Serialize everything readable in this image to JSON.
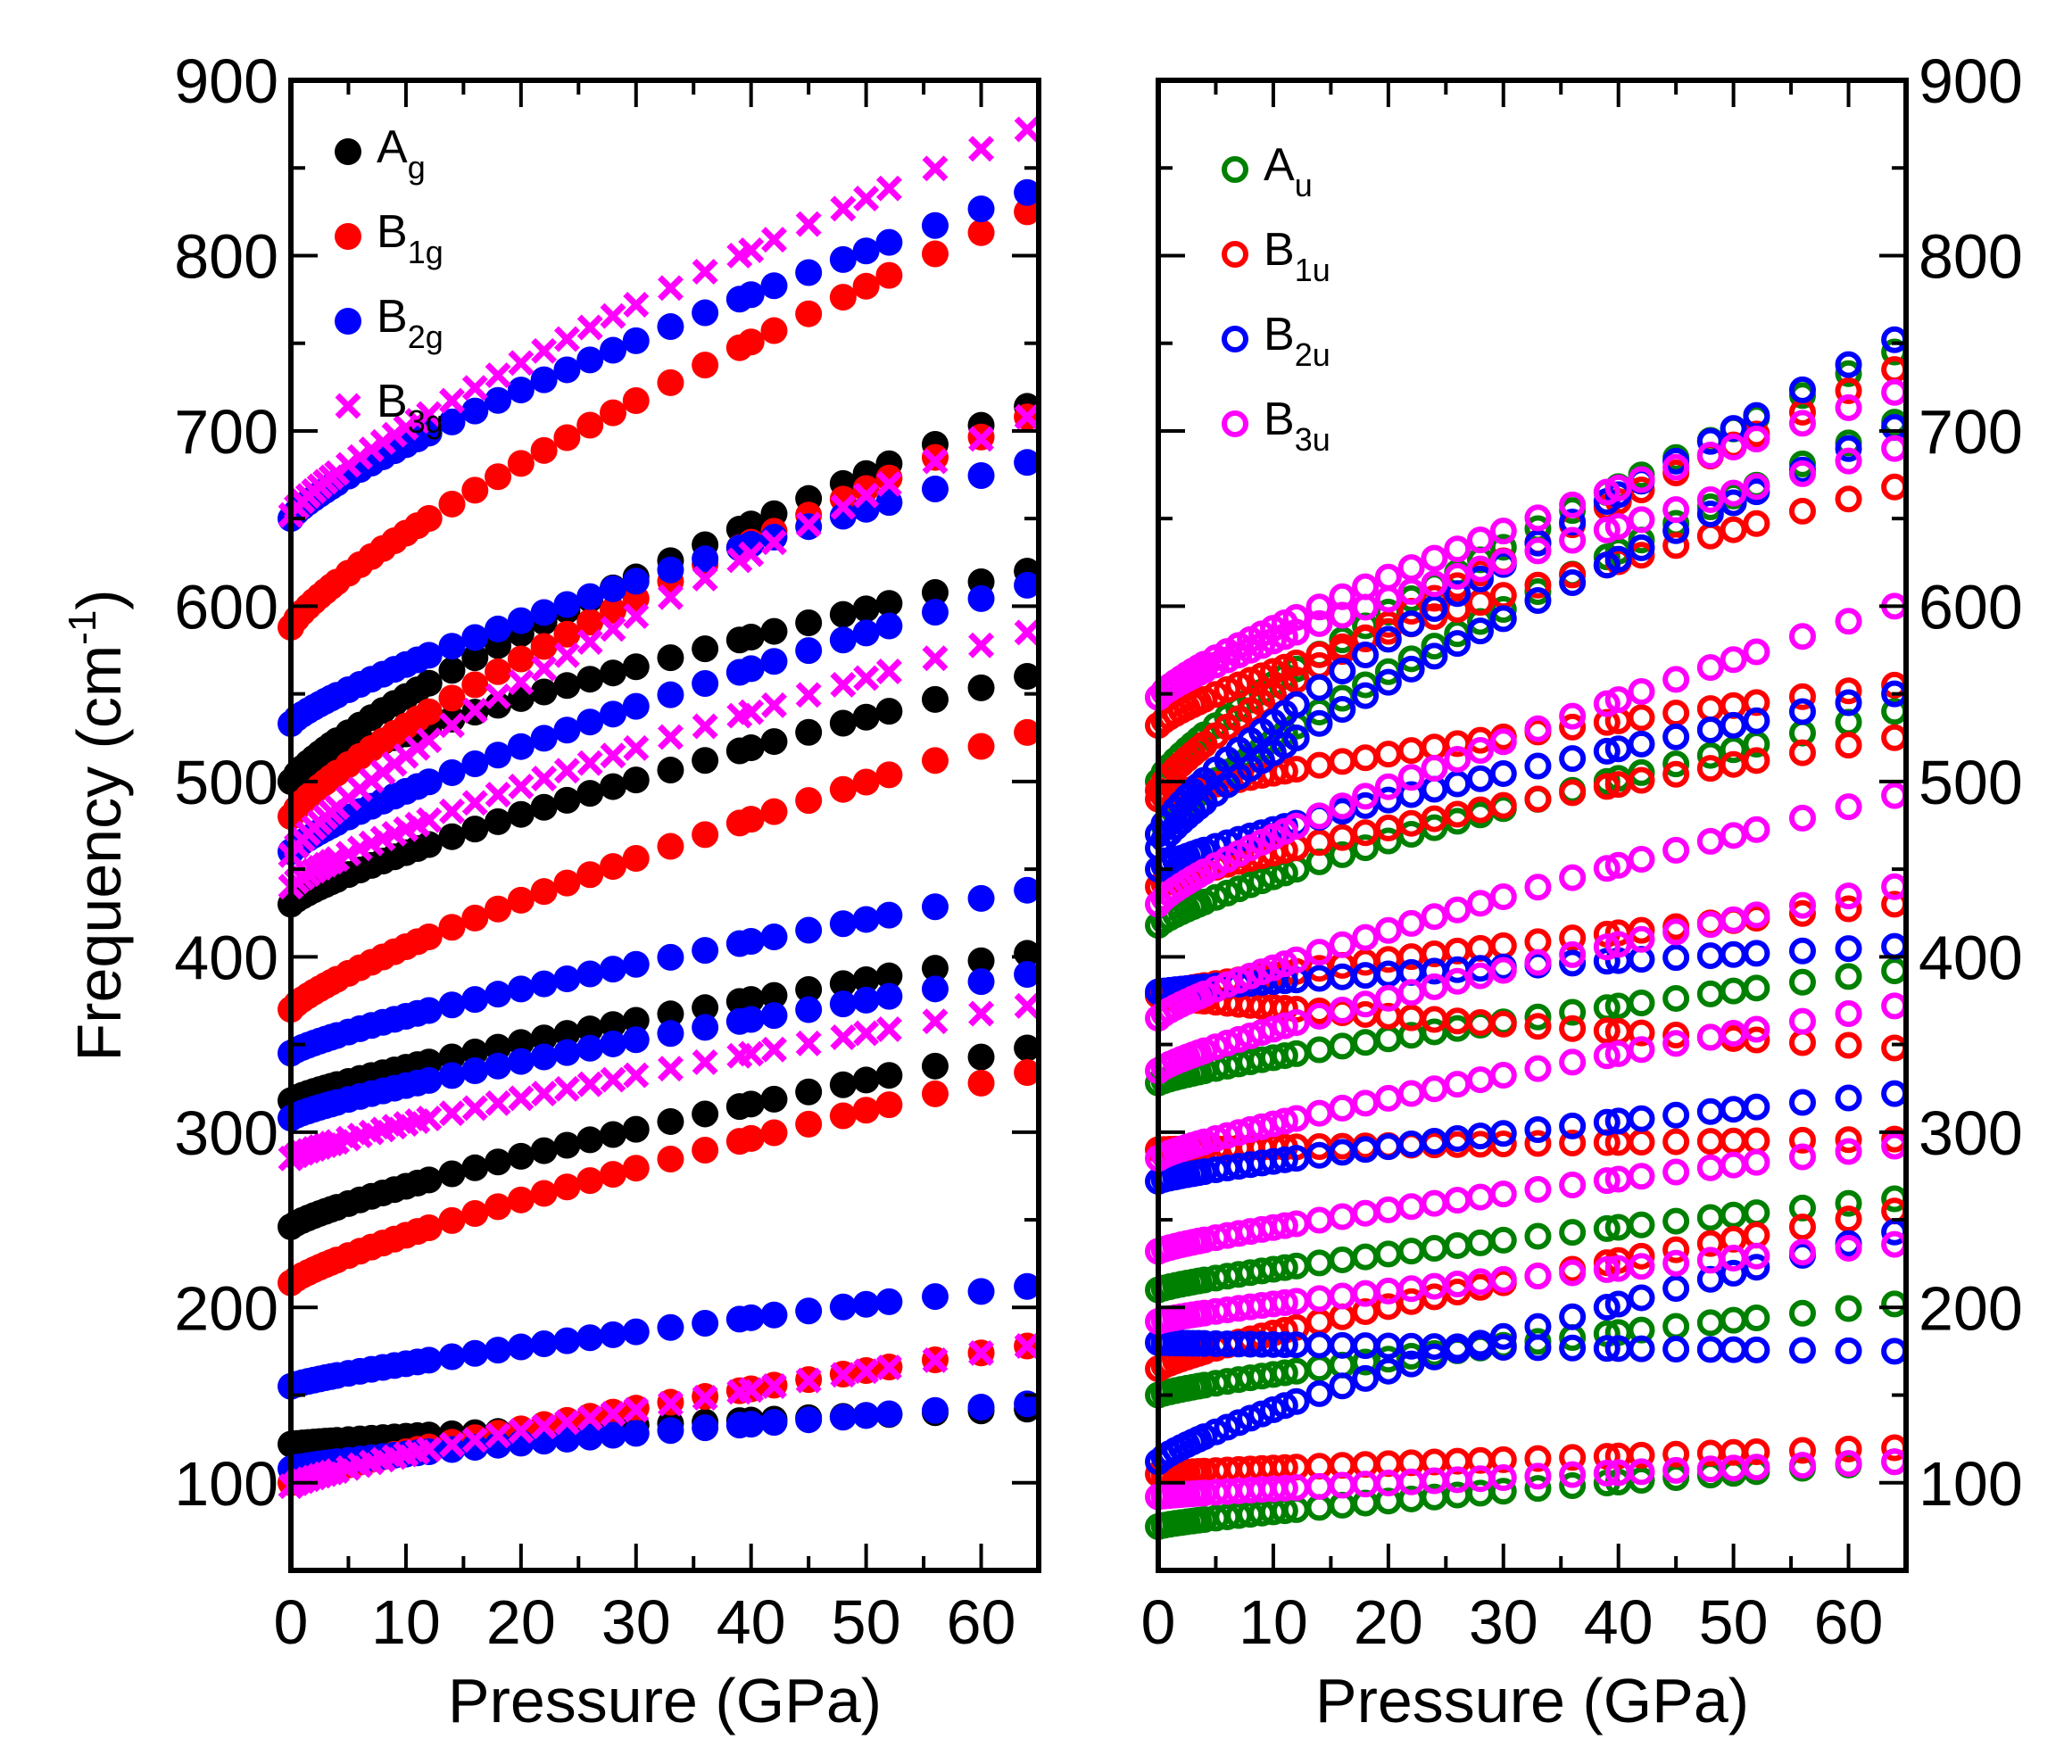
{
  "chart_data": [
    {
      "type": "scatter",
      "panel": "gerade",
      "xlabel": "Pressure (GPa)",
      "ylabel": "Frequency (cm-1)",
      "ylabel_main": "Frequency (cm",
      "ylabel_sup": "-1",
      "ylabel_close": ")",
      "xlim": [
        0,
        65
      ],
      "ylim": [
        50,
        900
      ],
      "xticks": [
        "0",
        "10",
        "20",
        "30",
        "40",
        "50",
        "60"
      ],
      "yticks": [
        "100",
        "200",
        "300",
        "400",
        "500",
        "600",
        "700",
        "800",
        "900"
      ],
      "legend_position": "top-left",
      "series": [
        {
          "name": "Ag",
          "label_main": "A",
          "label_sub": "g",
          "marker": "filled-circle",
          "color": "#000000",
          "branches": [
            [
              0,
              122,
              64,
              142
            ],
            [
              0,
              246,
              64,
              348
            ],
            [
              0,
              318,
              64,
              402
            ],
            [
              0,
              430,
              64,
              560
            ],
            [
              0,
              500,
              64,
              620
            ],
            [
              0,
              500,
              64,
              714
            ]
          ]
        },
        {
          "name": "B1g",
          "label_main": "B",
          "label_sub": "1g",
          "marker": "filled-circle",
          "color": "#ff0000",
          "branches": [
            [
              0,
              100,
              64,
              178
            ],
            [
              0,
              214,
              64,
              334
            ],
            [
              0,
              370,
              64,
              528
            ],
            [
              0,
              480,
              64,
              708
            ],
            [
              0,
              588,
              64,
              825
            ]
          ]
        },
        {
          "name": "B2g",
          "label_main": "B",
          "label_sub": "2g",
          "marker": "filled-circle",
          "color": "#0000ff",
          "branches": [
            [
              0,
              108,
              64,
              145
            ],
            [
              0,
              155,
              64,
              212
            ],
            [
              0,
              308,
              64,
              390
            ],
            [
              0,
              345,
              64,
              438
            ],
            [
              0,
              460,
              64,
              612
            ],
            [
              0,
              533,
              64,
              682
            ],
            [
              0,
              650,
              64,
              836
            ]
          ]
        },
        {
          "name": "B3g",
          "label_main": "B",
          "label_sub": "3g",
          "marker": "cross",
          "color": "#ff00ff",
          "branches": [
            [
              0,
              98,
              64,
              178
            ],
            [
              0,
              285,
              64,
              372
            ],
            [
              0,
              440,
              64,
              585
            ],
            [
              0,
              458,
              64,
              708
            ],
            [
              0,
              652,
              64,
              872
            ]
          ]
        }
      ]
    },
    {
      "type": "scatter",
      "panel": "ungerade",
      "xlabel": "Pressure (GPa)",
      "xlim": [
        0,
        65
      ],
      "ylim": [
        50,
        900
      ],
      "xticks": [
        "0",
        "10",
        "20",
        "30",
        "40",
        "50",
        "60"
      ],
      "yticks": [
        "100",
        "200",
        "300",
        "400",
        "500",
        "600",
        "700",
        "800",
        "900"
      ],
      "legend_position": "top-left",
      "series": [
        {
          "name": "Au",
          "label_main": "A",
          "label_sub": "u",
          "marker": "open-circle",
          "color": "#008000",
          "branches": [
            [
              0,
              75,
              64,
              112
            ],
            [
              0,
              150,
              64,
              202
            ],
            [
              0,
              210,
              64,
              262
            ],
            [
              0,
              328,
              64,
              392
            ],
            [
              0,
              418,
              64,
              540
            ],
            [
              0,
              470,
              64,
              705
            ],
            [
              0,
              500,
              64,
              745
            ]
          ]
        },
        {
          "name": "B1u",
          "label_main": "B",
          "label_sub": "1u",
          "marker": "open-circle",
          "color": "#ff0000",
          "branches": [
            [
              0,
              105,
              64,
              120
            ],
            [
              0,
              165,
              64,
              255
            ],
            [
              0,
              290,
              64,
              296
            ],
            [
              0,
              378,
              64,
              348
            ],
            [
              0,
              378,
              64,
              430
            ],
            [
              0,
              440,
              64,
              525
            ],
            [
              0,
              490,
              64,
              555
            ],
            [
              0,
              532,
              64,
              668
            ],
            [
              0,
              495,
              64,
              735
            ]
          ]
        },
        {
          "name": "B2u",
          "label_main": "B",
          "label_sub": "2u",
          "marker": "open-circle",
          "color": "#0000ff",
          "branches": [
            [
              0,
              112,
              64,
              243
            ],
            [
              0,
              180,
              64,
              175
            ],
            [
              0,
              272,
              64,
              322
            ],
            [
              0,
              380,
              64,
              406
            ],
            [
              0,
              450,
              64,
              550
            ],
            [
              0,
              462,
              64,
              702
            ],
            [
              0,
              470,
              64,
              752
            ]
          ]
        },
        {
          "name": "B3u",
          "label_main": "B",
          "label_sub": "3u",
          "marker": "open-circle",
          "color": "#ff00ff",
          "branches": [
            [
              0,
              92,
              64,
              112
            ],
            [
              0,
              192,
              64,
              236
            ],
            [
              0,
              232,
              64,
              292
            ],
            [
              0,
              285,
              64,
              372
            ],
            [
              0,
              335,
              64,
              440
            ],
            [
              0,
              365,
              64,
              492
            ],
            [
              0,
              430,
              64,
              600
            ],
            [
              0,
              548,
              64,
              690
            ],
            [
              0,
              548,
              64,
              722
            ]
          ]
        }
      ]
    }
  ]
}
